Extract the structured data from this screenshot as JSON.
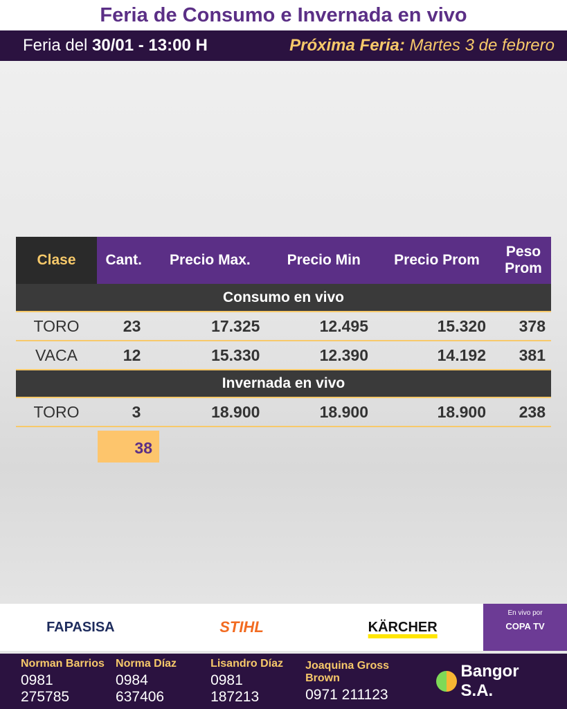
{
  "title": "Feria de Consumo e Invernada en vivo",
  "date_bar": {
    "prefix": "Feria del ",
    "date": "30/01 - 13:00 H",
    "next_label": "Próxima Feria:",
    "next_value": " Martes 3 de febrero"
  },
  "table": {
    "headers": [
      "Clase",
      "Cant.",
      "Precio Max.",
      "Precio Min",
      "Precio Prom",
      "Peso Prom"
    ],
    "sections": [
      {
        "title": "Consumo en vivo",
        "rows": [
          [
            "TORO",
            "23",
            "17.325",
            "12.495",
            "15.320",
            "378"
          ],
          [
            "VACA",
            "12",
            "15.330",
            "12.390",
            "14.192",
            "381"
          ]
        ]
      },
      {
        "title": "Invernada en vivo",
        "rows": [
          [
            "TORO",
            "3",
            "18.900",
            "18.900",
            "18.900",
            "238"
          ]
        ]
      }
    ],
    "total": "38"
  },
  "sponsors": [
    "FAPASISA",
    "STIHL",
    "KÄRCHER"
  ],
  "copa": {
    "label": "En vivo por",
    "brand": "COPA TV"
  },
  "contacts": [
    {
      "name": "Norman Barrios",
      "phone": "0981 275785"
    },
    {
      "name": "Norma Díaz",
      "phone": "0984 637406"
    },
    {
      "name": "Lisandro Díaz",
      "phone": "0981 187213"
    },
    {
      "name": "Joaquina Gross Brown",
      "phone": "0971 211123"
    }
  ],
  "brand": "Bangor S.A."
}
